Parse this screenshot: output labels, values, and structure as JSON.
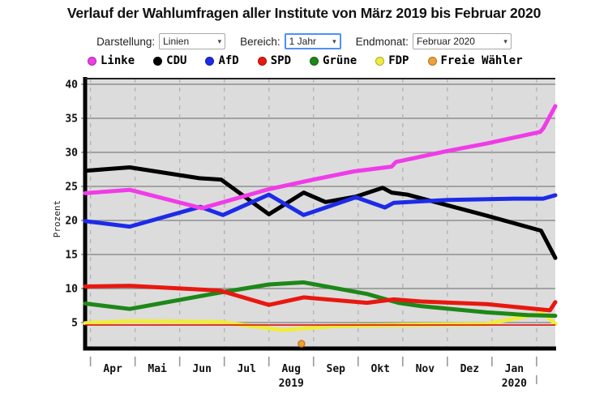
{
  "page": {
    "title": "Verlauf der Wahlumfragen aller Institute von März 2019 bis Februar 2020"
  },
  "controls": {
    "darstellung": {
      "label": "Darstellung:",
      "value": "Linien"
    },
    "bereich": {
      "label": "Bereich:",
      "value": "1 Jahr"
    },
    "endmonat": {
      "label": "Endmonat:",
      "value": "Februar 2020"
    }
  },
  "legend": [
    {
      "label": "Linke",
      "color": "#f03ce8"
    },
    {
      "label": "CDU",
      "color": "#000000"
    },
    {
      "label": "AfD",
      "color": "#1c2be8"
    },
    {
      "label": "SPD",
      "color": "#e81810"
    },
    {
      "label": "Grüne",
      "color": "#1e8718"
    },
    {
      "label": "FDP",
      "color": "#f0ec3c"
    },
    {
      "label": "Freie Wähler",
      "color": "#f0a038"
    }
  ],
  "chart_data": {
    "type": "line",
    "title": "Verlauf der Wahlumfragen aller Institute von März 2019 bis Februar 2020",
    "ylabel": "Prozent",
    "ylim": [
      0,
      42
    ],
    "y_ticks": [
      5,
      10,
      15,
      20,
      25,
      30,
      35,
      40
    ],
    "grid": true,
    "x_unit": "month index: 1 = 1 Apr 2019, 11 = 1 Feb 2020",
    "x_domain": [
      0.88,
      11.42
    ],
    "month_gridlines": [
      1,
      2,
      3,
      4,
      5,
      6,
      7,
      8,
      9,
      10,
      11
    ],
    "month_labels": [
      {
        "label": "Apr",
        "x": 1.5
      },
      {
        "label": "Mai",
        "x": 2.5
      },
      {
        "label": "Jun",
        "x": 3.5
      },
      {
        "label": "Jul",
        "x": 4.5
      },
      {
        "label": "Aug",
        "x": 5.5
      },
      {
        "label": "Sep",
        "x": 6.5
      },
      {
        "label": "Okt",
        "x": 7.5
      },
      {
        "label": "Nov",
        "x": 8.5
      },
      {
        "label": "Dez",
        "x": 9.5
      },
      {
        "label": "Jan",
        "x": 10.5
      }
    ],
    "year_labels": [
      {
        "label": "2019",
        "x": 5.5
      },
      {
        "label": "2020",
        "x": 10.5
      }
    ],
    "threshold_line": {
      "value": 5,
      "color": "#dd0000",
      "note": "5%-Hürde"
    },
    "series": [
      {
        "name": "Linke",
        "color": "#f03ce8",
        "points": [
          [
            0.88,
            24.0
          ],
          [
            1.88,
            24.5
          ],
          [
            3.5,
            21.8
          ],
          [
            5.0,
            24.6
          ],
          [
            6.0,
            26.0
          ],
          [
            6.9,
            27.2
          ],
          [
            7.75,
            27.9
          ],
          [
            7.85,
            28.6
          ],
          [
            9.0,
            30.2
          ],
          [
            9.88,
            31.3
          ],
          [
            11.08,
            33.0
          ],
          [
            11.15,
            33.5
          ],
          [
            11.42,
            36.8
          ]
        ]
      },
      {
        "name": "CDU",
        "color": "#000000",
        "points": [
          [
            0.88,
            27.3
          ],
          [
            1.88,
            27.8
          ],
          [
            3.44,
            26.2
          ],
          [
            3.93,
            26.0
          ],
          [
            5.0,
            20.9
          ],
          [
            5.78,
            24.1
          ],
          [
            6.27,
            22.7
          ],
          [
            6.95,
            23.5
          ],
          [
            7.55,
            24.8
          ],
          [
            7.75,
            24.1
          ],
          [
            8.1,
            23.8
          ],
          [
            9.88,
            20.7
          ],
          [
            11.1,
            18.5
          ],
          [
            11.42,
            14.5
          ]
        ]
      },
      {
        "name": "AfD",
        "color": "#1c2be8",
        "points": [
          [
            0.88,
            19.9
          ],
          [
            1.88,
            19.1
          ],
          [
            3.46,
            22.0
          ],
          [
            3.97,
            20.8
          ],
          [
            5.0,
            23.8
          ],
          [
            5.78,
            20.8
          ],
          [
            6.95,
            23.4
          ],
          [
            7.6,
            21.9
          ],
          [
            7.8,
            22.6
          ],
          [
            9.0,
            23.0
          ],
          [
            10.5,
            23.2
          ],
          [
            11.15,
            23.2
          ],
          [
            11.42,
            23.7
          ]
        ]
      },
      {
        "name": "SPD",
        "color": "#e81810",
        "points": [
          [
            0.88,
            10.3
          ],
          [
            1.88,
            10.4
          ],
          [
            3.9,
            9.7
          ],
          [
            5.0,
            7.6
          ],
          [
            5.78,
            8.7
          ],
          [
            7.2,
            7.9
          ],
          [
            7.8,
            8.4
          ],
          [
            8.42,
            8.1
          ],
          [
            9.88,
            7.7
          ],
          [
            11.3,
            6.8
          ],
          [
            11.42,
            8.0
          ]
        ]
      },
      {
        "name": "Grüne",
        "color": "#1e8718",
        "points": [
          [
            0.88,
            7.8
          ],
          [
            1.88,
            7.0
          ],
          [
            3.9,
            9.4
          ],
          [
            5.0,
            10.6
          ],
          [
            5.78,
            10.9
          ],
          [
            7.2,
            9.2
          ],
          [
            7.9,
            7.9
          ],
          [
            8.42,
            7.4
          ],
          [
            9.88,
            6.5
          ],
          [
            10.8,
            6.1
          ],
          [
            11.42,
            6.0
          ]
        ]
      },
      {
        "name": "FDP",
        "color": "#f0ec3c",
        "points": [
          [
            0.88,
            4.9
          ],
          [
            1.88,
            5.2
          ],
          [
            3.9,
            5.1
          ],
          [
            5.3,
            3.9
          ],
          [
            6.5,
            4.5
          ],
          [
            8.42,
            4.7
          ],
          [
            9.88,
            4.8
          ],
          [
            11.15,
            6.4
          ],
          [
            11.42,
            4.8
          ]
        ]
      }
    ],
    "scatter": [
      {
        "name": "Freie Wähler",
        "color": "#f0a038",
        "points": [
          [
            5.73,
            1.9
          ]
        ]
      }
    ]
  }
}
